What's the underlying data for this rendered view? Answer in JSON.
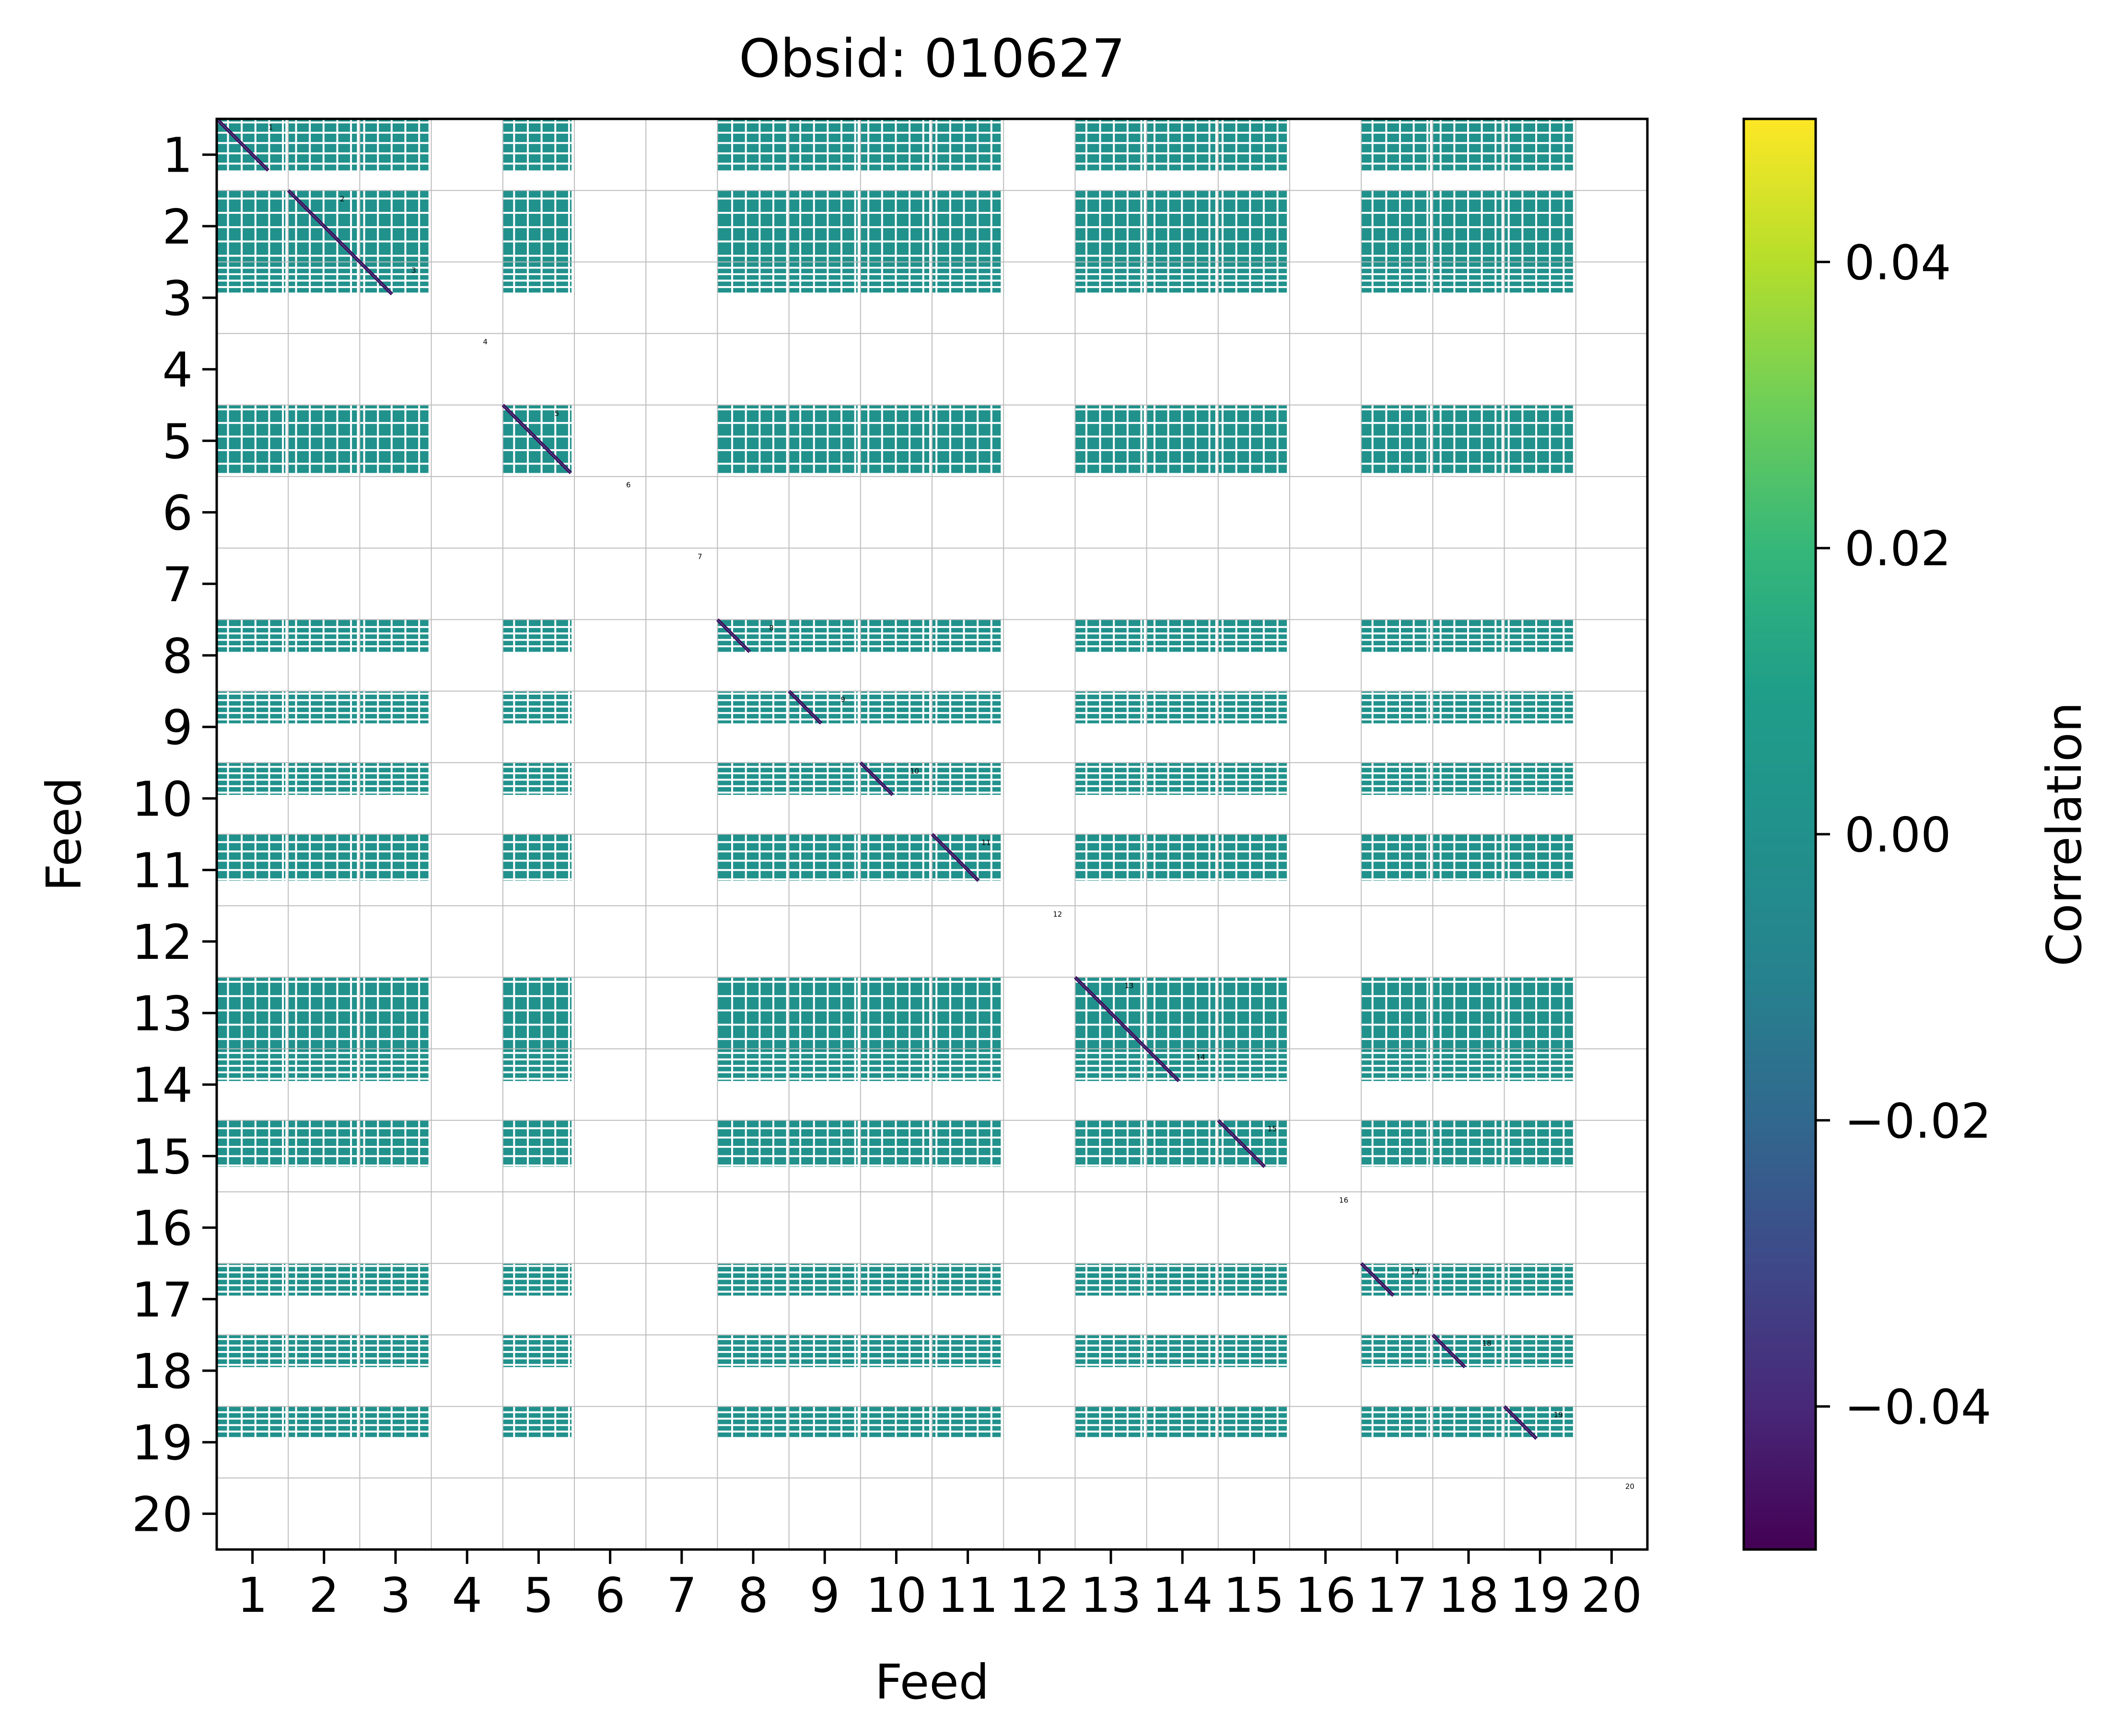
{
  "chart_data": {
    "type": "heatmap",
    "title": "Obsid: 010627",
    "xlabel": "Feed",
    "ylabel": "Feed",
    "x_ticks": [
      "1",
      "2",
      "3",
      "4",
      "5",
      "6",
      "7",
      "8",
      "9",
      "10",
      "11",
      "12",
      "13",
      "14",
      "15",
      "16",
      "17",
      "18",
      "19",
      "20"
    ],
    "y_ticks": [
      "1",
      "2",
      "3",
      "4",
      "5",
      "6",
      "7",
      "8",
      "9",
      "10",
      "11",
      "12",
      "13",
      "14",
      "15",
      "16",
      "17",
      "18",
      "19",
      "20"
    ],
    "diagonal_labels": [
      "1",
      "2",
      "3",
      "4",
      "5",
      "6",
      "7",
      "8",
      "9",
      "10",
      "11",
      "12",
      "13",
      "14",
      "15",
      "16",
      "17",
      "18",
      "19",
      "20"
    ],
    "colorbar": {
      "label": "Correlation",
      "min": -0.05,
      "max": 0.05,
      "ticks": [
        {
          "value": -0.04,
          "label": "−0.04"
        },
        {
          "value": -0.02,
          "label": "−0.02"
        },
        {
          "value": 0.0,
          "label": "0.00"
        },
        {
          "value": 0.02,
          "label": "0.02"
        },
        {
          "value": 0.04,
          "label": "0.04"
        }
      ],
      "colormap": "viridis"
    },
    "active_feeds": [
      1,
      2,
      3,
      5,
      8,
      9,
      10,
      11,
      13,
      14,
      15,
      17,
      18,
      19
    ],
    "empty_feeds": [
      4,
      6,
      7,
      12,
      16,
      20
    ],
    "feed_row_coverage": {
      "1": [
        0.0,
        0.72
      ],
      "2": [
        0.0,
        1.0
      ],
      "3": [
        0.0,
        0.45
      ],
      "5": [
        0.0,
        0.95
      ],
      "8": [
        0.0,
        0.45
      ],
      "9": [
        0.0,
        0.45
      ],
      "10": [
        0.0,
        0.45
      ],
      "11": [
        0.0,
        0.65
      ],
      "13": [
        0.0,
        1.0
      ],
      "14": [
        0.0,
        0.45
      ],
      "15": [
        0.0,
        0.65
      ],
      "17": [
        0.0,
        0.45
      ],
      "18": [
        0.0,
        0.45
      ],
      "19": [
        0.0,
        0.45
      ]
    },
    "off_diagonal_value": 0.0,
    "diagonal_value": -0.05
  },
  "colors": {
    "zero": "#21918c",
    "background": "#ffffff",
    "grid": "#bdbdbd",
    "diag_dark": "#440154",
    "diag_mid": "#3b528b"
  }
}
